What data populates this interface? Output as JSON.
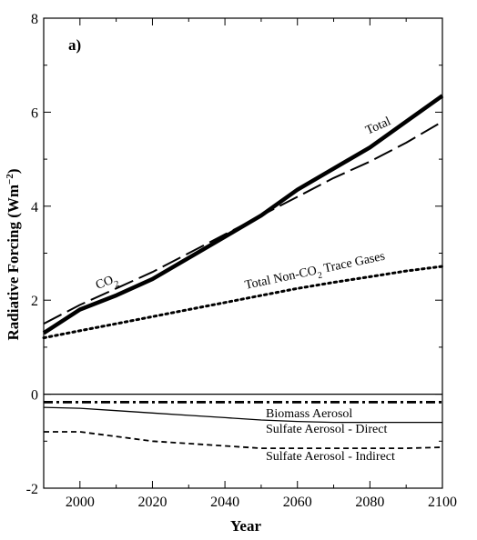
{
  "chart_data": {
    "type": "line",
    "panel_label": "a)",
    "xlabel": "Year",
    "ylabel": "Radiative Forcing (Wm",
    "ylabel_sup": "−2",
    "ylabel_close": ")",
    "xlim": [
      1990,
      2100
    ],
    "ylim": [
      -2,
      8
    ],
    "x_ticks": [
      2000,
      2020,
      2040,
      2060,
      2080,
      2100
    ],
    "y_ticks": [
      -2,
      0,
      2,
      4,
      6,
      8
    ],
    "zero_line": true,
    "series": [
      {
        "name": "Total",
        "style": "thick-solid",
        "x": [
          1990,
          2000,
          2010,
          2020,
          2030,
          2040,
          2050,
          2060,
          2070,
          2080,
          2090,
          2100
        ],
        "y": [
          1.3,
          1.8,
          2.1,
          2.45,
          2.9,
          3.35,
          3.8,
          4.35,
          4.8,
          5.25,
          5.8,
          6.35
        ]
      },
      {
        "name": "CO2",
        "style": "long-dash",
        "x": [
          1990,
          2000,
          2010,
          2020,
          2030,
          2040,
          2050,
          2060,
          2070,
          2080,
          2090,
          2100
        ],
        "y": [
          1.5,
          1.9,
          2.25,
          2.6,
          3.0,
          3.4,
          3.8,
          4.2,
          4.6,
          4.95,
          5.35,
          5.8
        ]
      },
      {
        "name": "Total Non-CO2 Trace Gases",
        "style": "dotted",
        "x": [
          1990,
          2000,
          2010,
          2020,
          2030,
          2040,
          2050,
          2060,
          2070,
          2080,
          2090,
          2100
        ],
        "y": [
          1.2,
          1.35,
          1.5,
          1.65,
          1.8,
          1.95,
          2.1,
          2.25,
          2.38,
          2.5,
          2.62,
          2.72
        ]
      },
      {
        "name": "Biomass Aerosol",
        "style": "dash-dot",
        "x": [
          1990,
          2100
        ],
        "y": [
          -0.17,
          -0.17
        ]
      },
      {
        "name": "Sulfate Aerosol - Direct",
        "style": "thin-solid",
        "x": [
          1990,
          2000,
          2010,
          2020,
          2030,
          2040,
          2050,
          2060,
          2070,
          2080,
          2090,
          2100
        ],
        "y": [
          -0.28,
          -0.3,
          -0.35,
          -0.4,
          -0.45,
          -0.5,
          -0.55,
          -0.58,
          -0.6,
          -0.6,
          -0.6,
          -0.6
        ]
      },
      {
        "name": "Sulfate Aerosol - Indirect",
        "style": "short-dash",
        "x": [
          1990,
          2000,
          2010,
          2020,
          2030,
          2040,
          2050,
          2060,
          2070,
          2080,
          2090,
          2100
        ],
        "y": [
          -0.8,
          -0.8,
          -0.9,
          -1.0,
          -1.05,
          -1.1,
          -1.15,
          -1.15,
          -1.15,
          -1.15,
          -1.15,
          -1.13
        ]
      }
    ],
    "annotations": {
      "total": "Total",
      "co2": "CO",
      "co2_sub": "2",
      "nonco2_a": "Total Non-CO",
      "nonco2_sub": "2",
      "nonco2_b": " Trace Gases",
      "biomass": "Biomass Aerosol",
      "sulfate_direct": "Sulfate Aerosol - Direct",
      "sulfate_indirect": "Sulfate Aerosol - Indirect"
    }
  }
}
